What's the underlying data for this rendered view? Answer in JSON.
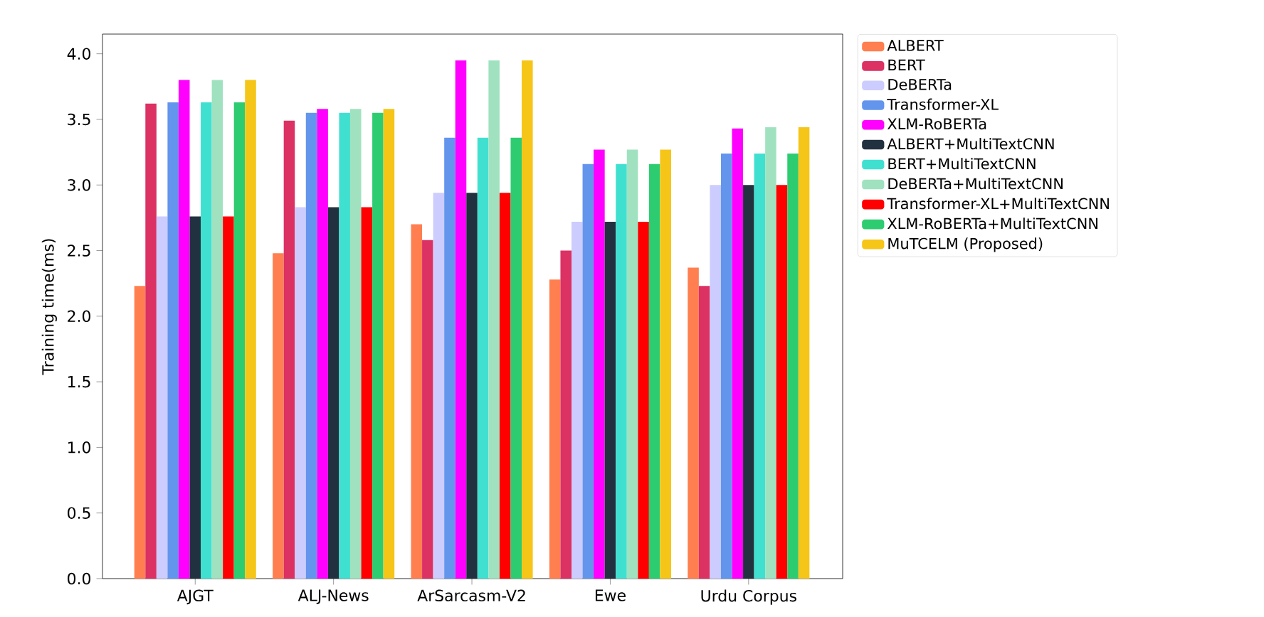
{
  "chart_data": {
    "type": "bar",
    "ylabel": "Training time(ms)",
    "categories": [
      "AJGT",
      "ALJ-News",
      "ArSarcasm-V2",
      "Ewe",
      "Urdu Corpus"
    ],
    "series": [
      {
        "name": "ALBERT",
        "color": "#ff7f50",
        "values": [
          2.23,
          2.48,
          2.7,
          2.28,
          2.37
        ]
      },
      {
        "name": "BERT",
        "color": "#dc3163",
        "values": [
          3.62,
          3.49,
          2.58,
          2.5,
          2.23
        ]
      },
      {
        "name": "DeBERTa",
        "color": "#ccccff",
        "values": [
          2.76,
          2.83,
          2.94,
          2.72,
          3.0
        ]
      },
      {
        "name": "Transformer-XL",
        "color": "#6495ed",
        "values": [
          3.63,
          3.55,
          3.36,
          3.16,
          3.24
        ]
      },
      {
        "name": "XLM-RoBERTa",
        "color": "#ff00ff",
        "values": [
          3.8,
          3.58,
          3.95,
          3.27,
          3.43
        ]
      },
      {
        "name": "ALBERT+MultiTextCNN",
        "color": "#22313f",
        "values": [
          2.76,
          2.83,
          2.94,
          2.72,
          3.0
        ]
      },
      {
        "name": "BERT+MultiTextCNN",
        "color": "#40e0d0",
        "values": [
          3.63,
          3.55,
          3.36,
          3.16,
          3.24
        ]
      },
      {
        "name": "DeBERTa+MultiTextCNN",
        "color": "#a0e2c0",
        "values": [
          3.8,
          3.58,
          3.95,
          3.27,
          3.44
        ]
      },
      {
        "name": "Transformer-XL+MultiTextCNN",
        "color": "#ff0000",
        "values": [
          2.76,
          2.83,
          2.94,
          2.72,
          3.0
        ]
      },
      {
        "name": "XLM-RoBERTa+MultiTextCNN",
        "color": "#2ecc71",
        "values": [
          3.63,
          3.55,
          3.36,
          3.16,
          3.24
        ]
      },
      {
        "name": "MuTCELM (Proposed)",
        "color": "#f5c518",
        "values": [
          3.8,
          3.58,
          3.95,
          3.27,
          3.44
        ]
      }
    ],
    "ylim": [
      0,
      4.15
    ],
    "yticks": [
      {
        "value": 0,
        "label": "0.0"
      },
      0.5,
      {
        "value": 1,
        "label": "1.0"
      },
      1.5,
      {
        "value": 2,
        "label": "2.0"
      },
      2.5,
      {
        "value": 3,
        "label": "3.0"
      },
      3.5,
      {
        "value": 4,
        "label": "4.0"
      }
    ],
    "legend": "right",
    "grid": false
  }
}
